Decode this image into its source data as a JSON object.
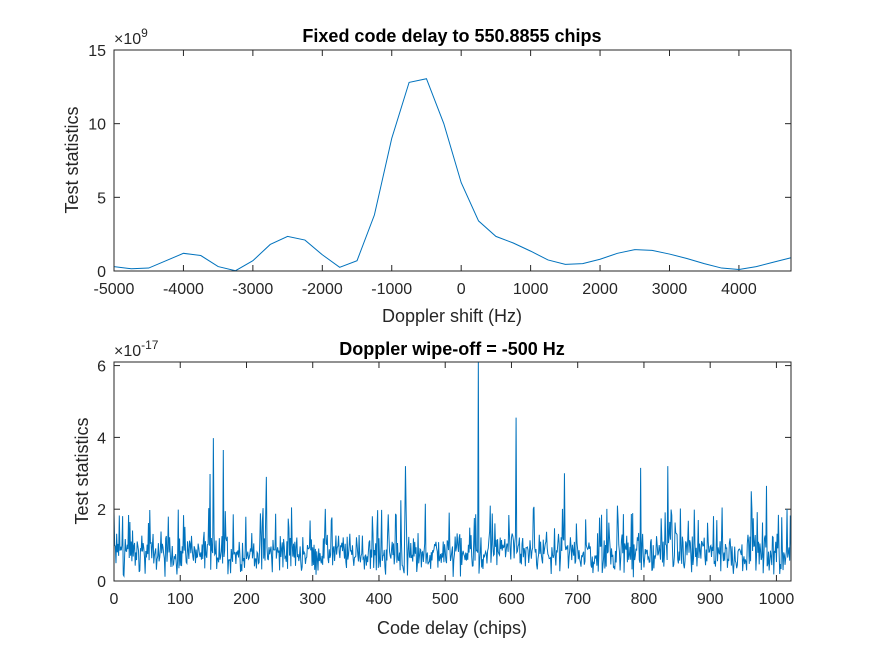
{
  "chart_data": [
    {
      "type": "line",
      "title": "Fixed code delay to 550.8855 chips",
      "xlabel": "Doppler shift (Hz)",
      "ylabel": "Test statistics",
      "exponent_base": "10",
      "exponent_power": "9",
      "xlim": [
        -5000,
        4750
      ],
      "ylim": [
        0,
        15
      ],
      "xticks": [
        -5000,
        -4000,
        -3000,
        -2000,
        -1000,
        0,
        1000,
        2000,
        3000,
        4000
      ],
      "yticks": [
        0,
        5,
        10,
        15
      ],
      "color": "#0072BD",
      "grid": false,
      "series": [
        {
          "x": [
            -5000,
            -4750,
            -4500,
            -4250,
            -4000,
            -3750,
            -3500,
            -3250,
            -3000,
            -2750,
            -2500,
            -2250,
            -2000,
            -1750,
            -1500,
            -1250,
            -1000,
            -750,
            -500,
            -250,
            0,
            250,
            500,
            750,
            1000,
            1250,
            1500,
            1750,
            2000,
            2250,
            2500,
            2750,
            3000,
            3250,
            3500,
            3750,
            4000,
            4250,
            4500,
            4750
          ],
          "values": [
            0.3,
            0.15,
            0.2,
            0.7,
            1.2,
            1.05,
            0.3,
            0.02,
            0.7,
            1.8,
            2.35,
            2.1,
            1.1,
            0.25,
            0.7,
            3.8,
            9.0,
            12.8,
            13.05,
            10.0,
            6.0,
            3.4,
            2.35,
            1.9,
            1.35,
            0.75,
            0.45,
            0.5,
            0.8,
            1.2,
            1.45,
            1.4,
            1.15,
            0.85,
            0.5,
            0.2,
            0.1,
            0.3,
            0.6,
            0.9
          ]
        }
      ]
    },
    {
      "type": "line",
      "title": "Doppler wipe-off = -500 Hz",
      "xlabel": "Code delay (chips)",
      "ylabel": "Test statistics",
      "exponent_base": "10",
      "exponent_power": "-17",
      "xlim": [
        0,
        1022
      ],
      "ylim": [
        0,
        6.1
      ],
      "xticks": [
        0,
        100,
        200,
        300,
        400,
        500,
        600,
        700,
        800,
        900,
        1000
      ],
      "yticks": [
        0,
        2,
        4,
        6
      ],
      "color": "#0072BD",
      "grid": false,
      "noise_envelope_typical_max": 1.6,
      "peaks": [
        {
          "x": 150,
          "y": 3.98
        },
        {
          "x": 145,
          "y": 2.98
        },
        {
          "x": 165,
          "y": 3.65
        },
        {
          "x": 230,
          "y": 2.9
        },
        {
          "x": 268,
          "y": 2.05
        },
        {
          "x": 433,
          "y": 2.25
        },
        {
          "x": 440,
          "y": 3.2
        },
        {
          "x": 470,
          "y": 2.15
        },
        {
          "x": 550,
          "y": 6.1
        },
        {
          "x": 568,
          "y": 2.1
        },
        {
          "x": 607,
          "y": 4.55
        },
        {
          "x": 680,
          "y": 3.0
        },
        {
          "x": 760,
          "y": 2.1
        },
        {
          "x": 795,
          "y": 3.15
        },
        {
          "x": 836,
          "y": 3.2
        },
        {
          "x": 962,
          "y": 2.5
        },
        {
          "x": 985,
          "y": 2.65
        }
      ]
    }
  ]
}
